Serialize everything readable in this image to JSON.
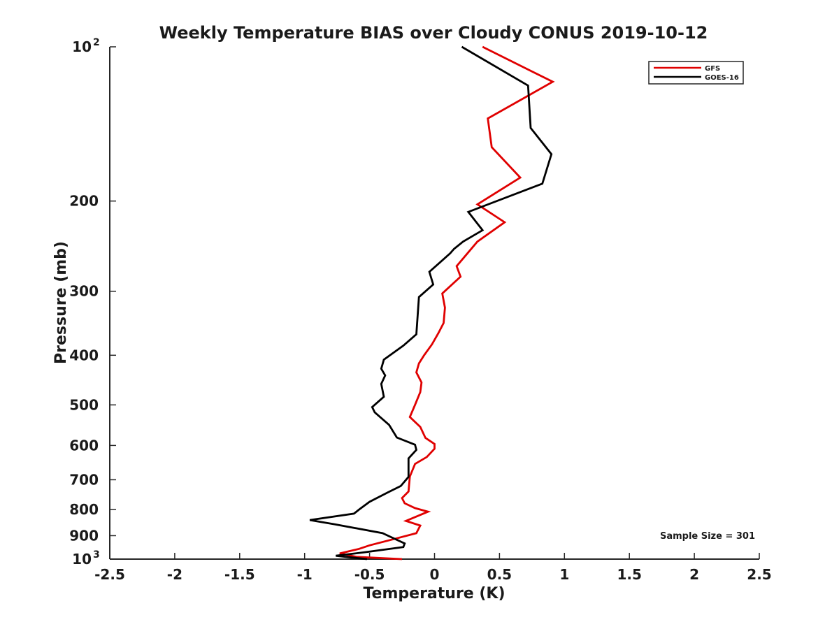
{
  "chart_data": {
    "type": "line",
    "title": "Weekly Temperature BIAS over Cloudy CONUS 2019-10-12",
    "xlabel": "Temperature (K)",
    "ylabel": "Pressure (mb)",
    "xlim": [
      -2.5,
      2.5
    ],
    "ylim": [
      100,
      1000
    ],
    "y_scale": "log",
    "y_reversed": true,
    "grid": false,
    "legend_position": "top-right",
    "annotation": "Sample Size = 301",
    "x_ticks": [
      "-2.5",
      "-2",
      "-1.5",
      "-1",
      "-0.5",
      "0",
      "0.5",
      "1",
      "1.5",
      "2",
      "2.5"
    ],
    "x_tick_values": [
      -2.5,
      -2,
      -1.5,
      -1,
      -0.5,
      0,
      0.5,
      1,
      1.5,
      2,
      2.5
    ],
    "y_ticks": [
      {
        "value": 100,
        "base": "10",
        "exp": "2"
      },
      {
        "value": 200,
        "label": "200"
      },
      {
        "value": 300,
        "label": "300"
      },
      {
        "value": 400,
        "label": "400"
      },
      {
        "value": 500,
        "label": "500"
      },
      {
        "value": 600,
        "label": "600"
      },
      {
        "value": 700,
        "label": "700"
      },
      {
        "value": 800,
        "label": "800"
      },
      {
        "value": 900,
        "label": "900"
      },
      {
        "value": 1000,
        "base": "10",
        "exp": "3"
      }
    ],
    "series": [
      {
        "name": "GFS",
        "color": "#e00000",
        "points": [
          [
            0.37,
            100
          ],
          [
            0.91,
            117
          ],
          [
            0.41,
            138
          ],
          [
            0.44,
            157
          ],
          [
            0.66,
            180
          ],
          [
            0.33,
            203
          ],
          [
            0.54,
            220
          ],
          [
            0.33,
            240
          ],
          [
            0.17,
            268
          ],
          [
            0.2,
            281
          ],
          [
            0.06,
            303
          ],
          [
            0.08,
            323
          ],
          [
            0.07,
            346
          ],
          [
            0.03,
            362
          ],
          [
            -0.02,
            381
          ],
          [
            -0.08,
            400
          ],
          [
            -0.12,
            415
          ],
          [
            -0.14,
            432
          ],
          [
            -0.1,
            452
          ],
          [
            -0.11,
            472
          ],
          [
            -0.15,
            500
          ],
          [
            -0.19,
            528
          ],
          [
            -0.11,
            552
          ],
          [
            -0.07,
            580
          ],
          [
            0.0,
            596
          ],
          [
            0.0,
            609
          ],
          [
            -0.06,
            632
          ],
          [
            -0.15,
            652
          ],
          [
            -0.19,
            690
          ],
          [
            -0.2,
            738
          ],
          [
            -0.25,
            760
          ],
          [
            -0.23,
            778
          ],
          [
            -0.15,
            795
          ],
          [
            -0.05,
            808
          ],
          [
            -0.12,
            822
          ],
          [
            -0.22,
            842
          ],
          [
            -0.11,
            860
          ],
          [
            -0.14,
            890
          ],
          [
            -0.3,
            912
          ],
          [
            -0.5,
            940
          ],
          [
            -0.58,
            955
          ],
          [
            -0.73,
            975
          ],
          [
            -0.6,
            990
          ],
          [
            -0.25,
            1000
          ]
        ]
      },
      {
        "name": "GOES-16",
        "color": "#000000",
        "points": [
          [
            0.21,
            100
          ],
          [
            0.72,
            119
          ],
          [
            0.74,
            144
          ],
          [
            0.9,
            162
          ],
          [
            0.83,
            185
          ],
          [
            0.26,
            210
          ],
          [
            0.37,
            228
          ],
          [
            0.22,
            240
          ],
          [
            0.15,
            248
          ],
          [
            0.12,
            253
          ],
          [
            -0.04,
            275
          ],
          [
            -0.01,
            291
          ],
          [
            -0.12,
            308
          ],
          [
            -0.14,
            364
          ],
          [
            -0.24,
            383
          ],
          [
            -0.39,
            408
          ],
          [
            -0.41,
            425
          ],
          [
            -0.38,
            438
          ],
          [
            -0.41,
            455
          ],
          [
            -0.39,
            482
          ],
          [
            -0.48,
            505
          ],
          [
            -0.46,
            517
          ],
          [
            -0.35,
            547
          ],
          [
            -0.29,
            579
          ],
          [
            -0.15,
            598
          ],
          [
            -0.14,
            612
          ],
          [
            -0.2,
            636
          ],
          [
            -0.2,
            651
          ],
          [
            -0.2,
            691
          ],
          [
            -0.26,
            720
          ],
          [
            -0.36,
            741
          ],
          [
            -0.5,
            773
          ],
          [
            -0.58,
            800
          ],
          [
            -0.62,
            815
          ],
          [
            -0.96,
            839
          ],
          [
            -0.77,
            855
          ],
          [
            -0.4,
            890
          ],
          [
            -0.23,
            932
          ],
          [
            -0.24,
            947
          ],
          [
            -0.54,
            970
          ],
          [
            -0.76,
            985
          ],
          [
            -0.68,
            990
          ],
          [
            -0.52,
            1000
          ]
        ]
      }
    ]
  }
}
